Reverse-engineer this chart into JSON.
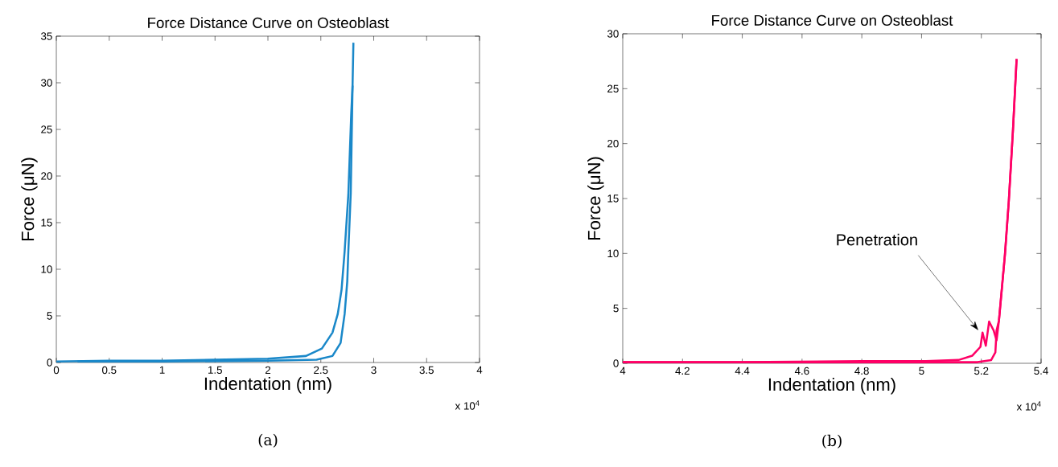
{
  "chart_data": [
    {
      "type": "line",
      "title": "Force Distance Curve on Osteoblast",
      "xlabel": "Indentation (nm)",
      "ylabel": "Force (μN)",
      "series": [
        {
          "color": "#1a88c9",
          "x": [
            0,
            0.5,
            1,
            1.5,
            2,
            2.36,
            2.51,
            2.61,
            2.66,
            2.696,
            2.725,
            2.76,
            2.788,
            2.8,
            2.808
          ],
          "values": [
            0.1,
            0.2,
            0.2,
            0.3,
            0.4,
            0.7,
            1.5,
            3.2,
            5.2,
            7.8,
            11.9,
            18,
            26.8,
            29.7,
            34.3
          ]
        },
        {
          "color": "#1a88c9",
          "x": [
            0.2,
            1,
            2,
            2.46,
            2.61,
            2.687,
            2.725,
            2.75,
            2.76,
            2.783,
            2.8
          ],
          "values": [
            0.1,
            0.1,
            0.2,
            0.3,
            0.7,
            2.1,
            5.2,
            8.7,
            11.9,
            18.2,
            29.7
          ]
        }
      ],
      "xlim": [
        0,
        4
      ],
      "ylim": [
        0,
        35
      ],
      "xticks": [
        0,
        0.5,
        1,
        1.5,
        2,
        2.5,
        3,
        3.5,
        4
      ],
      "yticks": [
        0,
        5,
        10,
        15,
        20,
        25,
        30,
        35
      ],
      "annotations": [
        "x 10$^{4}$",
        "(a)"
      ]
    },
    {
      "type": "line",
      "title": "Force Distance Curve on Osteoblast",
      "xlabel": "Indentation (nm)",
      "ylabel": "Force (μN)",
      "series": [
        {
          "color": "#ff0066",
          "x": [
            4,
            4.4,
            4.8,
            5.015,
            5.124,
            5.17,
            5.197,
            5.204,
            5.215,
            5.226,
            5.241,
            5.251,
            5.259,
            5.27,
            5.279,
            5.292,
            5.306,
            5.318
          ],
          "values": [
            0.1,
            0.1,
            0.2,
            0.2,
            0.3,
            0.7,
            1.5,
            2.8,
            1.6,
            3.8,
            3,
            2.1,
            3.9,
            7.2,
            9.9,
            14.8,
            21.3,
            27.7
          ]
        },
        {
          "color": "#ff0066",
          "x": [
            4,
            4.4,
            4.8,
            5.187,
            5.233,
            5.247,
            5.251,
            5.259,
            5.27,
            5.279,
            5.292,
            5.306,
            5.318
          ],
          "values": [
            0.1,
            0.1,
            0.1,
            0.1,
            0.3,
            1,
            3,
            3.9,
            7.2,
            9.9,
            14.8,
            21.3,
            27.7
          ]
        }
      ],
      "xlim": [
        4,
        5.4
      ],
      "ylim": [
        0,
        30
      ],
      "xticks": [
        4,
        4.2,
        4.4,
        4.6,
        4.8,
        5,
        5.2,
        5.4
      ],
      "yticks": [
        0,
        5,
        10,
        15,
        20,
        25,
        30
      ],
      "annotations": [
        {
          "text": "Penetration",
          "x": 5.19,
          "y": 3
        },
        "x 10$^{4}$",
        "(b)"
      ]
    }
  ]
}
